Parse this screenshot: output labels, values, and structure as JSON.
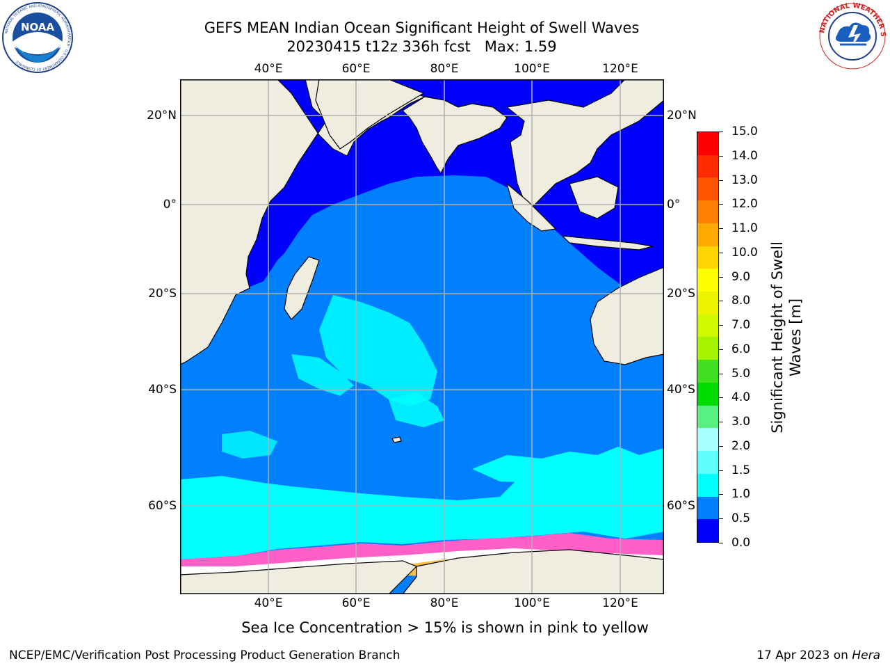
{
  "title": {
    "line1": "GEFS MEAN Indian Ocean Significant Height of Swell Waves",
    "line2": "20230415 t12z 336h fcst   Max: 1.59"
  },
  "logos": {
    "left": {
      "name": "noaa-logo",
      "text": "NOAA",
      "ring_text": "NATIONAL OCEANIC AND ATMOSPHERIC ADMINISTRATION · U.S. DEPARTMENT OF COMMERCE"
    },
    "right": {
      "name": "nws-logo",
      "ring_text": "NATIONAL WEATHER SERVICE"
    }
  },
  "map": {
    "lon_ticks_top": [
      "40°E",
      "60°E",
      "80°E",
      "100°E",
      "120°E"
    ],
    "lon_ticks_bottom": [
      "40°E",
      "60°E",
      "80°E",
      "100°E",
      "120°E"
    ],
    "lat_ticks_left": [
      "20°N",
      "0°",
      "20°S",
      "40°S",
      "60°S"
    ],
    "lat_ticks_right": [
      "20°N",
      "0°",
      "20°S",
      "40°S",
      "60°S"
    ],
    "land_color": "#eeeddf",
    "gridline_color": "#b0b0b0"
  },
  "colorbar": {
    "title_line1": "Significant Height of Swell",
    "title_line2": "Waves [m]",
    "labels": [
      "15.0",
      "14.0",
      "13.0",
      "12.0",
      "11.0",
      "10.0",
      "9.0",
      "8.0",
      "7.0",
      "6.0",
      "5.0",
      "4.0",
      "3.0",
      "2.0",
      "1.5",
      "1.0",
      "0.5",
      "0.0"
    ],
    "colors_top_to_bottom": [
      "#ff0000",
      "#ff2a00",
      "#ff5500",
      "#ff8000",
      "#ffaa00",
      "#ffd400",
      "#ffff00",
      "#ecf400",
      "#cff900",
      "#a6f300",
      "#40e020",
      "#00dc00",
      "#58f080",
      "#a8ffff",
      "#60ffff",
      "#00ffff",
      "#0080ff",
      "#0000ff"
    ]
  },
  "note": "Sea Ice Concentration > 15% is shown in pink to yellow",
  "footer": {
    "left": "NCEP/EMC/Verification Post Processing Product Generation Branch",
    "right_prefix": "17 Apr 2023 on ",
    "right_machine": "Hera"
  }
}
